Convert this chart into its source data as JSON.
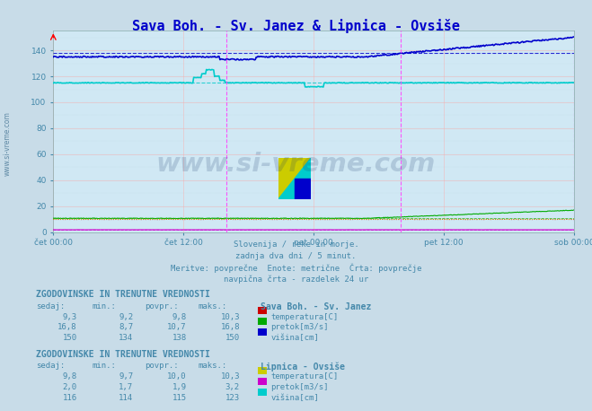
{
  "title": "Sava Boh. - Sv. Janez & Lipnica - Ovsiše",
  "title_color": "#0000cc",
  "bg_color": "#c8dce8",
  "plot_bg_color": "#d0e8f4",
  "grid_color_pink": "#ffaaaa",
  "grid_color_gray": "#aacccc",
  "ylim": [
    0,
    155
  ],
  "yticks": [
    20,
    40,
    60,
    80,
    100,
    120,
    140
  ],
  "n_points": 576,
  "sava_visina_dashed": 138,
  "lipnica_visina_dashed": 115,
  "sava_pretok_dashed": 10.7,
  "lipnica_pretok_dashed": 1.9,
  "text_color": "#4488aa",
  "label_color": "#4488aa",
  "watermark_color": "#1a3a6e",
  "xtick_labels": [
    "čet 00:00",
    "čet 12:00",
    "pet 00:00",
    "pet 12:00",
    "sob 00:00"
  ],
  "xtick_positions": [
    0.0,
    0.25,
    0.5,
    0.75,
    1.0
  ],
  "info_lines": [
    "Slovenija / reke in morje.",
    "zadnja dva dni / 5 minut.",
    "Meritve: povprečne  Enote: metrične  Črta: povprečje",
    "navpična črta - razdelek 24 ur"
  ],
  "section1_title": "ZGODOVINSKE IN TRENUTNE VREDNOSTI",
  "section1_station": "Sava Boh. - Sv. Janez",
  "section1_headers": [
    "sedaj:",
    "min.:",
    "povpr.:",
    "maks.:"
  ],
  "section1_rows": [
    {
      "label": "temperatura[C]",
      "color": "#cc0000",
      "values": [
        "9,3",
        "9,2",
        "9,8",
        "10,3"
      ]
    },
    {
      "label": "pretok[m3/s]",
      "color": "#00aa00",
      "values": [
        "16,8",
        "8,7",
        "10,7",
        "16,8"
      ]
    },
    {
      "label": "višina[cm]",
      "color": "#0000cc",
      "values": [
        "150",
        "134",
        "138",
        "150"
      ]
    }
  ],
  "section2_title": "ZGODOVINSKE IN TRENUTNE VREDNOSTI",
  "section2_station": "Lipnica - Ovsiše",
  "section2_headers": [
    "sedaj:",
    "min.:",
    "povpr.:",
    "maks.:"
  ],
  "section2_rows": [
    {
      "label": "temperatura[C]",
      "color": "#cccc00",
      "values": [
        "9,8",
        "9,7",
        "10,0",
        "10,3"
      ]
    },
    {
      "label": "pretok[m3/s]",
      "color": "#cc00cc",
      "values": [
        "2,0",
        "1,7",
        "1,9",
        "3,2"
      ]
    },
    {
      "label": "višina[cm]",
      "color": "#00cccc",
      "values": [
        "116",
        "114",
        "115",
        "123"
      ]
    }
  ]
}
